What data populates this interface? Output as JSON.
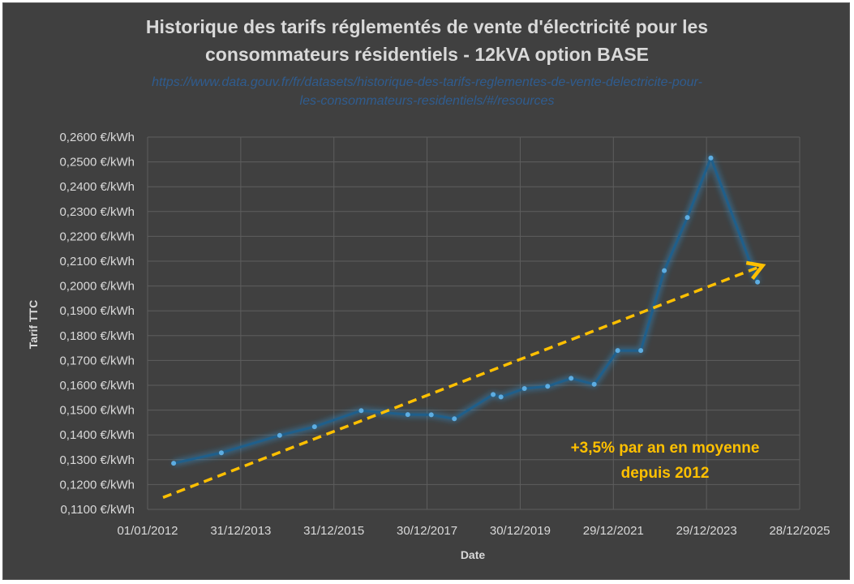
{
  "chart_data": {
    "type": "line",
    "title_lines": [
      "Historique des tarifs réglementés de vente d'électricité pour les",
      "consommateurs résidentiels - 12kVA option BASE"
    ],
    "subtitle_lines": [
      "https://www.data.gouv.fr/fr/datasets/historique-des-tarifs-reglementes-de-vente-delectricite-pour-",
      "les-consommateurs-residentiels/#/resources"
    ],
    "xlabel": "Date",
    "ylabel": "Tarif TTC",
    "xlim": [
      "2012-01-01",
      "2025-12-28"
    ],
    "ylim": [
      0.11,
      0.26
    ],
    "x_ticks": [
      "2012-01-01",
      "2013-12-31",
      "2015-12-31",
      "2017-12-30",
      "2019-12-30",
      "2021-12-29",
      "2023-12-29",
      "2025-12-28"
    ],
    "x_tick_labels": [
      "01/01/2012",
      "31/12/2013",
      "31/12/2015",
      "30/12/2017",
      "30/12/2019",
      "29/12/2021",
      "29/12/2023",
      "28/12/2025"
    ],
    "y_ticks": [
      0.11,
      0.12,
      0.13,
      0.14,
      0.15,
      0.16,
      0.17,
      0.18,
      0.19,
      0.2,
      0.21,
      0.22,
      0.23,
      0.24,
      0.25,
      0.26
    ],
    "y_tick_labels": [
      "0,1100 €/kWh",
      "0,1200 €/kWh",
      "0,1300 €/kWh",
      "0,1400 €/kWh",
      "0,1500 €/kWh",
      "0,1600 €/kWh",
      "0,1700 €/kWh",
      "0,1800 €/kWh",
      "0,1900 €/kWh",
      "0,2000 €/kWh",
      "0,2100 €/kWh",
      "0,2200 €/kWh",
      "0,2300 €/kWh",
      "0,2400 €/kWh",
      "0,2500 €/kWh",
      "0,2600 €/kWh"
    ],
    "grid": true,
    "series": [
      {
        "x": [
          "2012-07-23",
          "2013-08-01",
          "2014-11-01",
          "2015-08-01",
          "2016-08-01",
          "2017-08-01",
          "2018-02-01",
          "2018-08-01",
          "2019-06-01",
          "2019-08-01",
          "2020-02-01",
          "2020-08-01",
          "2021-02-01",
          "2021-08-01",
          "2022-02-01",
          "2022-08-01",
          "2023-02-01",
          "2023-08-01",
          "2024-02-01",
          "2025-02-01"
        ],
        "y": [
          0.1286,
          0.1328,
          0.1398,
          0.1433,
          0.1498,
          0.1482,
          0.1481,
          0.1465,
          0.1563,
          0.1553,
          0.1587,
          0.1596,
          0.1628,
          0.1604,
          0.174,
          0.174,
          0.2062,
          0.2276,
          0.2516,
          0.2016
        ]
      }
    ],
    "trendline": {
      "x": [
        "2012-05-01",
        "2025-02-20"
      ],
      "y": [
        0.1148,
        0.2078
      ]
    },
    "annotation_lines": [
      "+3,5% par an en moyenne",
      "depuis 2012"
    ],
    "colors": {
      "series": "#1f5f8b",
      "series_glow": "#2e86c1",
      "marker": "#5dade2",
      "trendline": "#ffc000",
      "grid": "#5e5e5e",
      "background": "#404040"
    }
  }
}
